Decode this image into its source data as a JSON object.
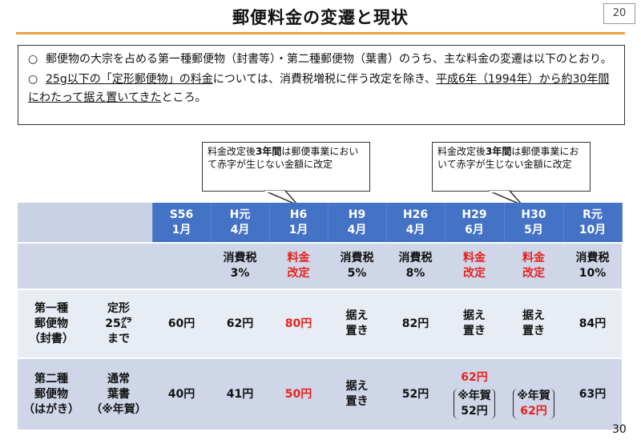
{
  "page": {
    "title": "郵便料金の変遷と現状",
    "slide_number": "20",
    "page_number": "30"
  },
  "intro": {
    "bullet": "○",
    "p1": "郵便物の大宗を占める第一種郵便物（封書等）・第二種郵便物（葉書）のうち、主な料金の変遷は以下のとおり。",
    "p2_a": "25g以下の「定形郵便物」の料金",
    "p2_b": "については、消費税増税に伴う改定を除き、",
    "p2_c": "平成6年（1994年）から約30年間にわたって据え置いてきた",
    "p2_d": "ところ。"
  },
  "callouts": [
    {
      "pre": "料金改定後",
      "bold": "3年間",
      "post": "は郵便事業において赤字が生じない金額に改定"
    },
    {
      "pre": "料金改定後",
      "bold": "3年間",
      "post": "は郵便事業において赤字が生じない金額に改定"
    }
  ],
  "table": {
    "columns": [
      {
        "l1": "S56",
        "l2": "1月",
        "event": "",
        "first": "60円",
        "second": "40円"
      },
      {
        "l1": "H元",
        "l2": "4月",
        "event": "消費税3%",
        "first": "62円",
        "second": "41円"
      },
      {
        "l1": "H6",
        "l2": "1月",
        "event": "料金改定",
        "first": "80円",
        "second": "50円"
      },
      {
        "l1": "H9",
        "l2": "4月",
        "event": "消費税5%",
        "first": "据え置き",
        "second": "据え置き"
      },
      {
        "l1": "H26",
        "l2": "4月",
        "event": "消費税8%",
        "first": "82円",
        "second": "52円"
      },
      {
        "l1": "H29",
        "l2": "6月",
        "event": "料金改定",
        "first": "据え置き",
        "second": "62円",
        "second_note": "※年賀",
        "second_note_val": "52円"
      },
      {
        "l1": "H30",
        "l2": "5月",
        "event": "料金改定",
        "first": "据え置き",
        "second": "",
        "second_note": "※年賀",
        "second_note_val": "62円"
      },
      {
        "l1": "R元",
        "l2": "10月",
        "event": "消費税10%",
        "first": "84円",
        "second": "63円"
      }
    ],
    "row_first": {
      "name1": "第一種",
      "name2": "郵便物",
      "name3": "（封書）",
      "sub1": "定形",
      "sub2": "25㌘",
      "sub3": "まで"
    },
    "row_second": {
      "name1": "第二種",
      "name2": "郵便物",
      "name3": "（はがき）",
      "sub1": "通常",
      "sub2": "葉書",
      "sub3": "（※年賀）"
    }
  },
  "colors": {
    "header_blue": "#4472c4",
    "accent_red": "#e8201e",
    "title_rule": "#f0a040"
  }
}
